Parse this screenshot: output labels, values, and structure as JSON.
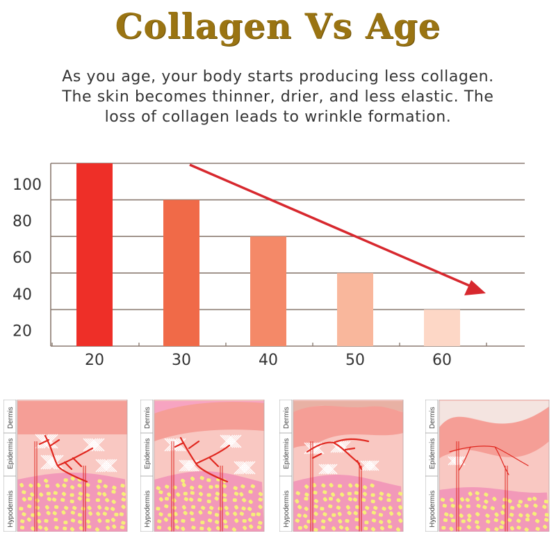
{
  "title": "Collagen Vs Age",
  "subtitle_lines": [
    "As you age, your body starts producing less collagen.",
    "The skin becomes thinner, drier, and less elastic. The",
    "loss of collagen leads to wrinkle formation."
  ],
  "chart_data": {
    "type": "bar",
    "categories": [
      "20",
      "30",
      "40",
      "50",
      "60"
    ],
    "values": [
      100,
      80,
      60,
      40,
      20
    ],
    "y_tick_labels": [
      "100",
      "80",
      "60",
      "40",
      "20"
    ],
    "ylim": [
      0,
      100
    ],
    "grid": true,
    "bar_colors": [
      "#ee2f28",
      "#f06a48",
      "#f48968",
      "#f9b79c",
      "#fdd7c6"
    ],
    "trend_arrow": {
      "color": "#d7282e",
      "direction": "down-right"
    }
  },
  "skin_layers": {
    "labels": [
      "Hypodermis",
      "Epidermis",
      "Dermis"
    ],
    "stages": 4
  },
  "colors": {
    "title": "#9a7412",
    "gridline": "#8a7a70",
    "vessel": "#e0261e",
    "fat_cell": "#f6ef79",
    "hypodermis": "#f299b9",
    "dermis": "#f9c8c2",
    "epidermis": "#f59e96"
  }
}
